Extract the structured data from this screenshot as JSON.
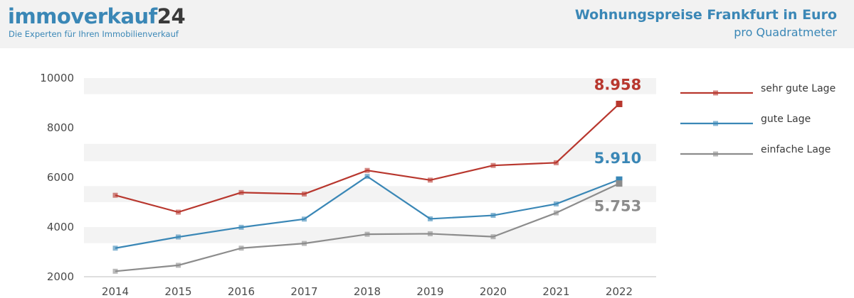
{
  "header": {
    "brand_part1": "immoverkauf",
    "brand_part2": "24",
    "tagline": "Die Experten für Ihren Immobilienverkauf",
    "title": "Wohnungspreise Frankfurt in Euro",
    "subtitle": "pro Quadratmeter"
  },
  "colors": {
    "brand": "#3a87b6",
    "sehr_gute": "#b8372e",
    "gute": "#3a87b6",
    "einfache": "#8c8c8c",
    "band": "#f3f3f3"
  },
  "chart_data": {
    "type": "line",
    "title": "Wohnungspreise Frankfurt in Euro",
    "subtitle": "pro Quadratmeter",
    "xlabel": "",
    "ylabel": "",
    "categories": [
      "2014",
      "2015",
      "2016",
      "2017",
      "2018",
      "2019",
      "2020",
      "2021",
      "2022"
    ],
    "ylim": [
      2000,
      10000
    ],
    "yticks": [
      2000,
      4000,
      6000,
      8000,
      10000
    ],
    "series": [
      {
        "name": "sehr gute Lage",
        "color": "#b8372e",
        "values": [
          5280,
          4600,
          5390,
          5330,
          6280,
          5890,
          6480,
          6590,
          8958
        ]
      },
      {
        "name": "gute Lage",
        "color": "#3a87b6",
        "values": [
          3150,
          3600,
          3990,
          4320,
          6040,
          4330,
          4470,
          4930,
          5910
        ]
      },
      {
        "name": "einfache Lage",
        "color": "#8c8c8c",
        "values": [
          2220,
          2460,
          3150,
          3340,
          3710,
          3730,
          3610,
          4570,
          5753
        ]
      }
    ],
    "annotations": [
      {
        "series": "sehr gute Lage",
        "text": "8.958"
      },
      {
        "series": "gute Lage",
        "text": "5.910"
      },
      {
        "series": "einfache Lage",
        "text": "5.753"
      }
    ],
    "legend_position": "right"
  }
}
